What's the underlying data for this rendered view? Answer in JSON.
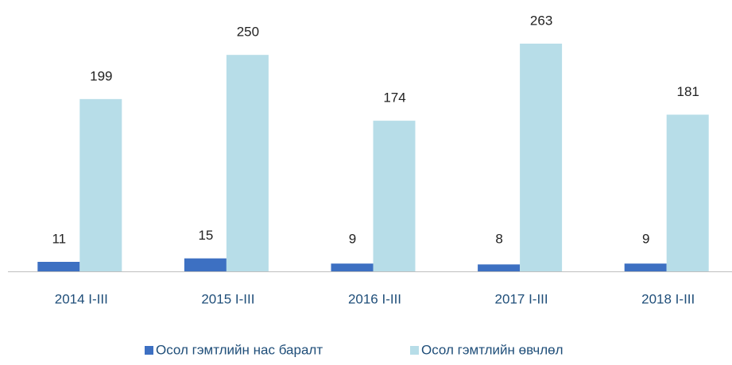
{
  "chart_data": {
    "type": "bar",
    "categories": [
      "2014 I-III",
      "2015 I-III",
      "2016 I-III",
      "2017 I-III",
      "2018 I-III"
    ],
    "series": [
      {
        "name": "Осол гэмтлийн нас баралт",
        "color": "#3d70c2",
        "values": [
          11,
          15,
          9,
          8,
          9
        ]
      },
      {
        "name": "Осол гэмтлийн өвчлөл",
        "color": "#b7dde8",
        "values": [
          199,
          250,
          174,
          263,
          181
        ]
      }
    ]
  }
}
